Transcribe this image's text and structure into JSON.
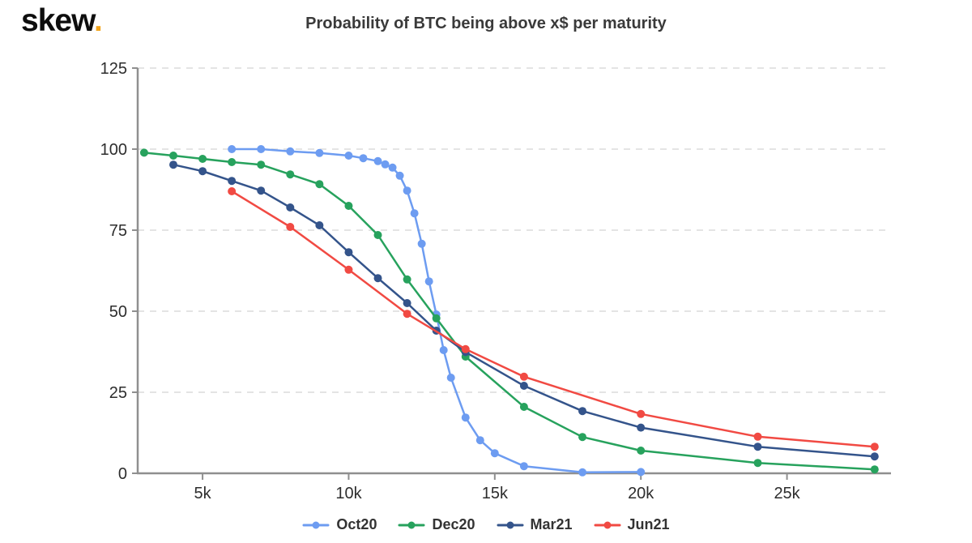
{
  "header": {
    "logo_text": "skew",
    "logo_dot": ".",
    "title": "Probability of BTC being above x$ per maturity"
  },
  "colors": {
    "logo_dot": "#f2a41c",
    "title_text": "#3a3a3a",
    "axis_line": "#8f8f8f",
    "gridline": "#e4e4e4",
    "tick_text": "#2d2d2d"
  },
  "chart_data": {
    "type": "line",
    "title": "Probability of BTC being above x$ per maturity",
    "xlabel": "",
    "ylabel": "",
    "grid": true,
    "legend_position": "bottom",
    "x_axis": {
      "range": [
        2780,
        28560
      ],
      "ticks": [
        {
          "value": 5000,
          "label": "5k"
        },
        {
          "value": 10000,
          "label": "10k"
        },
        {
          "value": 15000,
          "label": "15k"
        },
        {
          "value": 20000,
          "label": "20k"
        },
        {
          "value": 25000,
          "label": "25k"
        }
      ]
    },
    "y_axis": {
      "range": [
        0,
        125
      ],
      "ticks": [
        {
          "value": 0,
          "label": "0"
        },
        {
          "value": 25,
          "label": "25"
        },
        {
          "value": 50,
          "label": "50"
        },
        {
          "value": 75,
          "label": "75"
        },
        {
          "value": 100,
          "label": "100"
        },
        {
          "value": 125,
          "label": "125"
        }
      ]
    },
    "series": [
      {
        "name": "Oct20",
        "color": "#6d9cf1",
        "points": [
          [
            6000,
            100
          ],
          [
            7000,
            100
          ],
          [
            8000,
            99.3
          ],
          [
            9000,
            98.8
          ],
          [
            10000,
            98
          ],
          [
            10500,
            97.2
          ],
          [
            11000,
            96.3
          ],
          [
            11250,
            95.3
          ],
          [
            11500,
            94.3
          ],
          [
            11750,
            91.8
          ],
          [
            12000,
            87.2
          ],
          [
            12250,
            80.2
          ],
          [
            12500,
            70.8
          ],
          [
            12750,
            59.2
          ],
          [
            13000,
            49
          ],
          [
            13250,
            38
          ],
          [
            13500,
            29.5
          ],
          [
            14000,
            17.2
          ],
          [
            14500,
            10.2
          ],
          [
            15000,
            6.2
          ],
          [
            16000,
            2.2
          ],
          [
            18000,
            0.3
          ],
          [
            20000,
            0.4
          ]
        ]
      },
      {
        "name": "Dec20",
        "color": "#27a25d",
        "points": [
          [
            3000,
            98.9
          ],
          [
            4000,
            98
          ],
          [
            5000,
            97
          ],
          [
            6000,
            96
          ],
          [
            7000,
            95.2
          ],
          [
            8000,
            92.2
          ],
          [
            9000,
            89.2
          ],
          [
            10000,
            82.5
          ],
          [
            11000,
            73.5
          ],
          [
            12000,
            59.8
          ],
          [
            13000,
            47.8
          ],
          [
            14000,
            36
          ],
          [
            16000,
            20.5
          ],
          [
            18000,
            11.2
          ],
          [
            20000,
            7
          ],
          [
            24000,
            3.2
          ],
          [
            28000,
            1.2
          ]
        ]
      },
      {
        "name": "Mar21",
        "color": "#34548b",
        "points": [
          [
            4000,
            95.2
          ],
          [
            5000,
            93.2
          ],
          [
            6000,
            90.2
          ],
          [
            7000,
            87.2
          ],
          [
            8000,
            82
          ],
          [
            9000,
            76.5
          ],
          [
            10000,
            68.2
          ],
          [
            11000,
            60.2
          ],
          [
            12000,
            52.5
          ],
          [
            13000,
            44
          ],
          [
            14000,
            37.4
          ],
          [
            16000,
            27
          ],
          [
            18000,
            19.2
          ],
          [
            20000,
            14.1
          ],
          [
            24000,
            8.2
          ],
          [
            28000,
            5.2
          ]
        ]
      },
      {
        "name": "Jun21",
        "color": "#f14a43",
        "points": [
          [
            6000,
            87
          ],
          [
            8000,
            76
          ],
          [
            10000,
            62.8
          ],
          [
            12000,
            49.2
          ],
          [
            14000,
            38.3
          ],
          [
            16000,
            29.8
          ],
          [
            20000,
            18.3
          ],
          [
            24000,
            11.3
          ],
          [
            28000,
            8.2
          ]
        ]
      }
    ]
  }
}
